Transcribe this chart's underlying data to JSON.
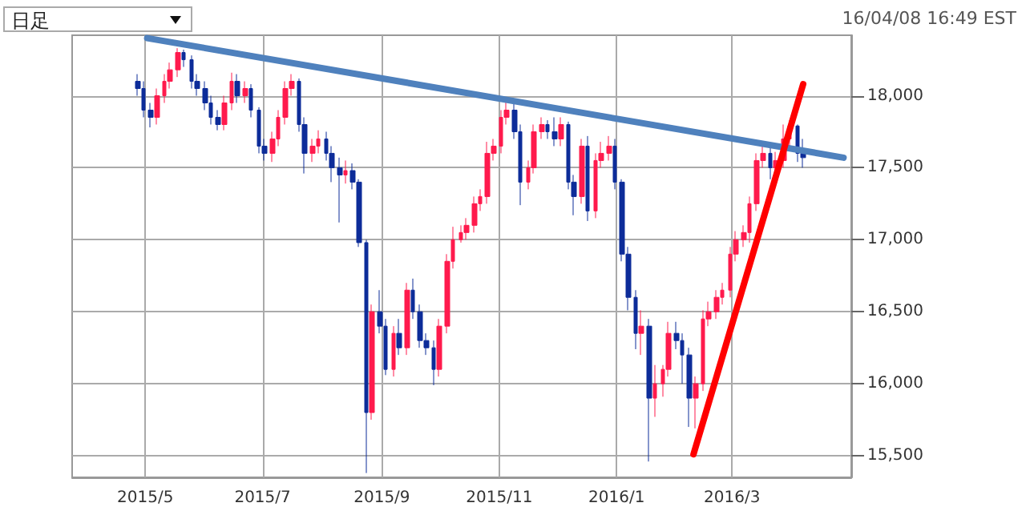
{
  "chart_data": {
    "type": "candlestick",
    "annotations": [
      "日足",
      "16/04/08 16:49 EST"
    ],
    "x": [
      "2015-04-27",
      "2015-04-30",
      "2015-05-04",
      "2015-05-07",
      "2015-05-11",
      "2015-05-14",
      "2015-05-18",
      "2015-05-21",
      "2015-05-25",
      "2015-05-28",
      "2015-06-01",
      "2015-06-04",
      "2015-06-08",
      "2015-06-11",
      "2015-06-15",
      "2015-06-18",
      "2015-06-22",
      "2015-06-25",
      "2015-06-29",
      "2015-07-02",
      "2015-07-06",
      "2015-07-09",
      "2015-07-13",
      "2015-07-16",
      "2015-07-20",
      "2015-07-23",
      "2015-07-27",
      "2015-07-30",
      "2015-08-03",
      "2015-08-06",
      "2015-08-10",
      "2015-08-13",
      "2015-08-17",
      "2015-08-20",
      "2015-08-24",
      "2015-08-27",
      "2015-08-31",
      "2015-09-03",
      "2015-09-07",
      "2015-09-10",
      "2015-09-14",
      "2015-09-17",
      "2015-09-21",
      "2015-09-24",
      "2015-09-28",
      "2015-10-01",
      "2015-10-05",
      "2015-10-08",
      "2015-10-12",
      "2015-10-15",
      "2015-10-19",
      "2015-10-22",
      "2015-10-26",
      "2015-10-29",
      "2015-11-02",
      "2015-11-05",
      "2015-11-09",
      "2015-11-12",
      "2015-11-16",
      "2015-11-19",
      "2015-11-23",
      "2015-11-26",
      "2015-11-30",
      "2015-12-03",
      "2015-12-07",
      "2015-12-10",
      "2015-12-14",
      "2015-12-17",
      "2015-12-21",
      "2015-12-24",
      "2015-12-28",
      "2015-12-31",
      "2016-01-04",
      "2016-01-07",
      "2016-01-11",
      "2016-01-14",
      "2016-01-18",
      "2016-01-21",
      "2016-01-25",
      "2016-01-28",
      "2016-02-01",
      "2016-02-04",
      "2016-02-08",
      "2016-02-11",
      "2016-02-15",
      "2016-02-18",
      "2016-02-22",
      "2016-02-25",
      "2016-02-29",
      "2016-03-03",
      "2016-03-07",
      "2016-03-10",
      "2016-03-14",
      "2016-03-17",
      "2016-03-21",
      "2016-03-24",
      "2016-03-28",
      "2016-03-31",
      "2016-04-04",
      "2016-04-07"
    ],
    "ohlc": [
      [
        18100,
        18150,
        18000,
        18050
      ],
      [
        18050,
        18100,
        17850,
        17900
      ],
      [
        17900,
        17950,
        17780,
        17850
      ],
      [
        17850,
        18050,
        17800,
        18000
      ],
      [
        18000,
        18150,
        17950,
        18100
      ],
      [
        18100,
        18230,
        18050,
        18180
      ],
      [
        18180,
        18330,
        18130,
        18300
      ],
      [
        18300,
        18320,
        18200,
        18250
      ],
      [
        18250,
        18280,
        18050,
        18100
      ],
      [
        18100,
        18150,
        18000,
        18050
      ],
      [
        18050,
        18100,
        17900,
        17950
      ],
      [
        17950,
        18000,
        17800,
        17850
      ],
      [
        17850,
        17900,
        17760,
        17800
      ],
      [
        17800,
        18000,
        17760,
        17950
      ],
      [
        17950,
        18160,
        17900,
        18100
      ],
      [
        18100,
        18150,
        17950,
        18000
      ],
      [
        18000,
        18100,
        17950,
        18050
      ],
      [
        18050,
        18080,
        17850,
        17900
      ],
      [
        17900,
        17920,
        17600,
        17650
      ],
      [
        17650,
        17700,
        17550,
        17600
      ],
      [
        17600,
        17750,
        17540,
        17700
      ],
      [
        17700,
        17900,
        17650,
        17850
      ],
      [
        17850,
        18100,
        17800,
        18050
      ],
      [
        18050,
        18150,
        18000,
        18100
      ],
      [
        18100,
        18120,
        17750,
        17800
      ],
      [
        17800,
        17850,
        17460,
        17600
      ],
      [
        17600,
        17700,
        17540,
        17650
      ],
      [
        17650,
        17760,
        17600,
        17700
      ],
      [
        17700,
        17750,
        17550,
        17600
      ],
      [
        17600,
        17650,
        17400,
        17500
      ],
      [
        17500,
        17570,
        17120,
        17450
      ],
      [
        17450,
        17550,
        17390,
        17480
      ],
      [
        17480,
        17530,
        17350,
        17400
      ],
      [
        17400,
        17420,
        16950,
        16980
      ],
      [
        16980,
        17000,
        15380,
        15800
      ],
      [
        15800,
        16550,
        15750,
        16500
      ],
      [
        16500,
        16650,
        16350,
        16400
      ],
      [
        16400,
        16450,
        16060,
        16100
      ],
      [
        16100,
        16400,
        16050,
        16350
      ],
      [
        16350,
        16450,
        16200,
        16250
      ],
      [
        16250,
        16700,
        16200,
        16650
      ],
      [
        16650,
        16730,
        16450,
        16500
      ],
      [
        16500,
        16550,
        16250,
        16300
      ],
      [
        16300,
        16350,
        16200,
        16250
      ],
      [
        16250,
        16300,
        15990,
        16100
      ],
      [
        16100,
        16450,
        16050,
        16400
      ],
      [
        16400,
        16900,
        16350,
        16850
      ],
      [
        16850,
        17090,
        16800,
        17000
      ],
      [
        17000,
        17100,
        16980,
        17050
      ],
      [
        17050,
        17150,
        17000,
        17100
      ],
      [
        17100,
        17300,
        17050,
        17250
      ],
      [
        17250,
        17350,
        17200,
        17300
      ],
      [
        17300,
        17680,
        17250,
        17600
      ],
      [
        17600,
        17700,
        17550,
        17650
      ],
      [
        17650,
        17900,
        17600,
        17850
      ],
      [
        17850,
        17980,
        17800,
        17900
      ],
      [
        17900,
        17950,
        17700,
        17750
      ],
      [
        17750,
        17800,
        17240,
        17400
      ],
      [
        17400,
        17550,
        17350,
        17500
      ],
      [
        17500,
        17800,
        17460,
        17750
      ],
      [
        17750,
        17850,
        17700,
        17800
      ],
      [
        17800,
        17830,
        17700,
        17750
      ],
      [
        17750,
        17850,
        17650,
        17700
      ],
      [
        17700,
        17850,
        17650,
        17800
      ],
      [
        17800,
        17820,
        17350,
        17400
      ],
      [
        17400,
        17450,
        17170,
        17300
      ],
      [
        17300,
        17700,
        17250,
        17650
      ],
      [
        17650,
        17720,
        17130,
        17200
      ],
      [
        17200,
        17600,
        17150,
        17550
      ],
      [
        17550,
        17680,
        17500,
        17600
      ],
      [
        17600,
        17720,
        17550,
        17650
      ],
      [
        17650,
        17700,
        17350,
        17400
      ],
      [
        17400,
        17420,
        16850,
        16900
      ],
      [
        16900,
        16950,
        16510,
        16600
      ],
      [
        16600,
        16650,
        16240,
        16350
      ],
      [
        16350,
        16510,
        16200,
        16400
      ],
      [
        16400,
        16450,
        15460,
        15900
      ],
      [
        15900,
        16130,
        15770,
        16000
      ],
      [
        16000,
        16130,
        15910,
        16100
      ],
      [
        16100,
        16430,
        16050,
        16350
      ],
      [
        16350,
        16430,
        16240,
        16300
      ],
      [
        16300,
        16350,
        16000,
        16200
      ],
      [
        16200,
        16250,
        15700,
        15900
      ],
      [
        15900,
        16050,
        15690,
        16000
      ],
      [
        16000,
        16510,
        15950,
        16450
      ],
      [
        16450,
        16570,
        16400,
        16500
      ],
      [
        16500,
        16650,
        16450,
        16600
      ],
      [
        16600,
        16700,
        16550,
        16650
      ],
      [
        16650,
        16950,
        16600,
        16900
      ],
      [
        16900,
        17060,
        16850,
        17000
      ],
      [
        17000,
        17100,
        16950,
        17050
      ],
      [
        17050,
        17300,
        16980,
        17250
      ],
      [
        17250,
        17600,
        17200,
        17550
      ],
      [
        17550,
        17650,
        17500,
        17600
      ],
      [
        17600,
        17650,
        17420,
        17500
      ],
      [
        17500,
        17610,
        17450,
        17550
      ],
      [
        17550,
        17800,
        17500,
        17700
      ],
      [
        17700,
        17830,
        17650,
        17790
      ],
      [
        17790,
        17800,
        17540,
        17600
      ],
      [
        17600,
        17700,
        17500,
        17570
      ]
    ],
    "colors": [
      "#0d2c99",
      "#0d2c99",
      "#0d2c99",
      "#ff1a4d",
      "#ff1a4d",
      "#ff1a4d",
      "#ff1a4d",
      "#0d2c99",
      "#0d2c99",
      "#0d2c99",
      "#0d2c99",
      "#0d2c99",
      "#0d2c99",
      "#ff1a4d",
      "#ff1a4d",
      "#0d2c99",
      "#ff1a4d",
      "#0d2c99",
      "#0d2c99",
      "#0d2c99",
      "#ff1a4d",
      "#ff1a4d",
      "#ff1a4d",
      "#ff1a4d",
      "#0d2c99",
      "#0d2c99",
      "#ff1a4d",
      "#ff1a4d",
      "#0d2c99",
      "#0d2c99",
      "#0d2c99",
      "#ff1a4d",
      "#0d2c99",
      "#0d2c99",
      "#0d2c99",
      "#ff1a4d",
      "#0d2c99",
      "#0d2c99",
      "#ff1a4d",
      "#0d2c99",
      "#ff1a4d",
      "#0d2c99",
      "#0d2c99",
      "#0d2c99",
      "#0d2c99",
      "#ff1a4d",
      "#ff1a4d",
      "#ff1a4d",
      "#ff1a4d",
      "#ff1a4d",
      "#ff1a4d",
      "#ff1a4d",
      "#ff1a4d",
      "#ff1a4d",
      "#ff1a4d",
      "#ff1a4d",
      "#0d2c99",
      "#0d2c99",
      "#ff1a4d",
      "#ff1a4d",
      "#ff1a4d",
      "#0d2c99",
      "#0d2c99",
      "#ff1a4d",
      "#0d2c99",
      "#0d2c99",
      "#ff1a4d",
      "#0d2c99",
      "#ff1a4d",
      "#ff1a4d",
      "#ff1a4d",
      "#0d2c99",
      "#0d2c99",
      "#0d2c99",
      "#0d2c99",
      "#ff1a4d",
      "#0d2c99",
      "#ff1a4d",
      "#ff1a4d",
      "#ff1a4d",
      "#0d2c99",
      "#0d2c99",
      "#0d2c99",
      "#ff1a4d",
      "#ff1a4d",
      "#ff1a4d",
      "#ff1a4d",
      "#ff1a4d",
      "#ff1a4d",
      "#ff1a4d",
      "#ff1a4d",
      "#ff1a4d",
      "#ff1a4d",
      "#ff1a4d",
      "#0d2c99",
      "#ff1a4d",
      "#ff1a4d",
      "#ff1a4d",
      "#0d2c99",
      "#0d2c99"
    ],
    "series": [
      {
        "type": "line",
        "color": "#4f81bd",
        "x": [
          "2015-05-02",
          "2016-04-28"
        ],
        "values": [
          18400,
          17570
        ]
      },
      {
        "type": "line",
        "color": "#ff0000",
        "x": [
          "2016-02-10",
          "2016-04-07"
        ],
        "values": [
          15510,
          18080
        ]
      }
    ],
    "marker": "none",
    "line_style": "solid",
    "xlim": [
      "2015-03-24",
      "2016-05-02"
    ],
    "xticks": [
      {
        "value": "2015-05-01",
        "label": "2015/5"
      },
      {
        "value": "2015-07-01",
        "label": "2015/7"
      },
      {
        "value": "2015-09-01",
        "label": "2015/9"
      },
      {
        "value": "2015-11-01",
        "label": "2015/11"
      },
      {
        "value": "2016-01-01",
        "label": "2016/1"
      },
      {
        "value": "2016-03-01",
        "label": "2016/3"
      }
    ],
    "ylim": [
      15350,
      18420
    ],
    "yticks": [
      {
        "value": 15500,
        "label": "15,500"
      },
      {
        "value": 16000,
        "label": "16,000"
      },
      {
        "value": 16500,
        "label": "16,500"
      },
      {
        "value": 17000,
        "label": "17,000"
      },
      {
        "value": 17500,
        "label": "17,500"
      },
      {
        "value": 18000,
        "label": "18,000"
      }
    ],
    "grid": true
  }
}
